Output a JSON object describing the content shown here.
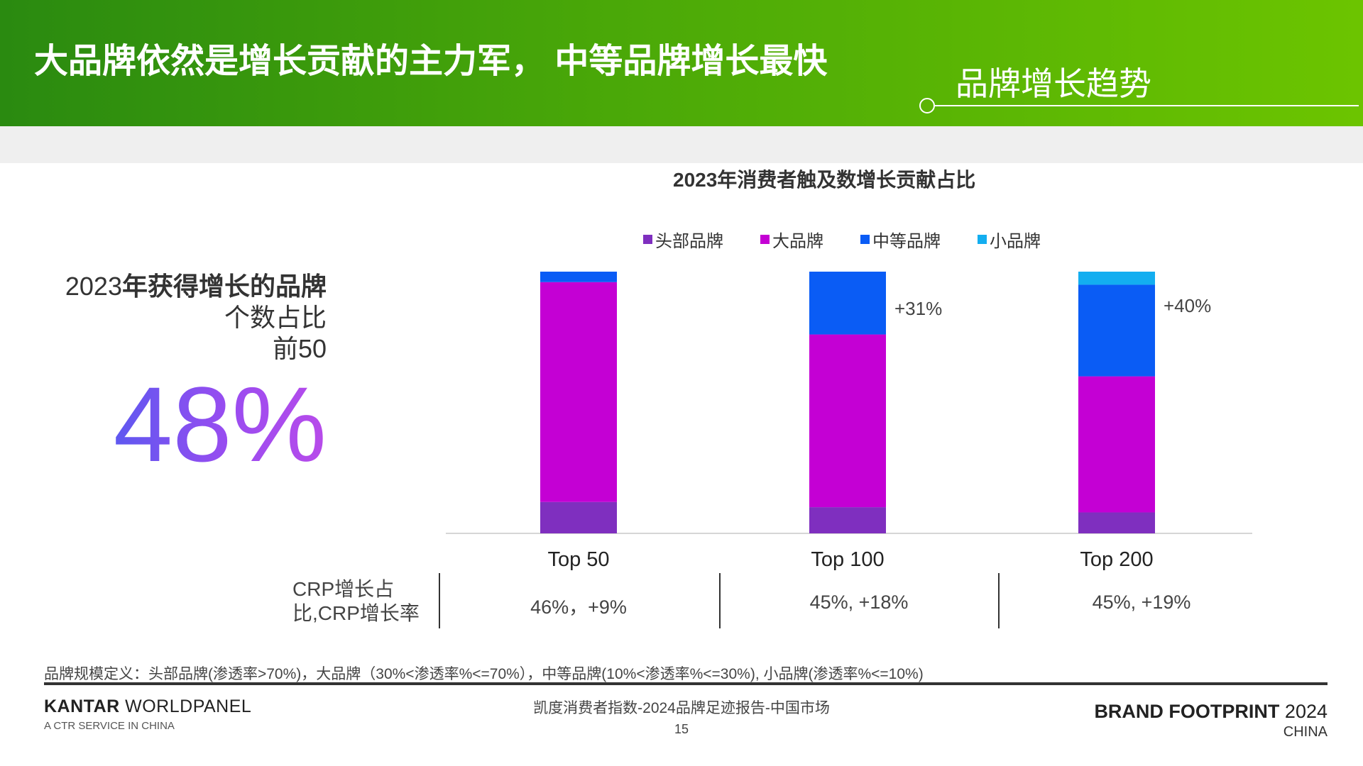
{
  "header": {
    "title": "大品牌依然是增长贡献的主力军， 中等品牌增长最快",
    "section": "品牌增长趋势"
  },
  "left_panel": {
    "heading_bold": "年获得增长的品牌",
    "heading_year": "2023",
    "line2": "个数占比",
    "line3": "前50",
    "big_number": "48%"
  },
  "chart_data": {
    "type": "bar",
    "stacked": true,
    "title": "2023年消费者触及数增长贡献占比",
    "categories": [
      "Top 50",
      "Top 100",
      "Top 200"
    ],
    "series": [
      {
        "name": "头部品牌",
        "color": "#7f2fbf",
        "values": [
          12,
          10,
          8
        ]
      },
      {
        "name": "大品牌",
        "color": "#c400d4",
        "values": [
          84,
          66,
          52
        ]
      },
      {
        "name": "中等品牌",
        "color": "#0a5cf5",
        "values": [
          4,
          24,
          35
        ]
      },
      {
        "name": "小品牌",
        "color": "#13aef0",
        "values": [
          0,
          0,
          5
        ]
      }
    ],
    "annotations": [
      "",
      "+31%",
      "+40%"
    ],
    "ylim": [
      0,
      100
    ],
    "grid": false,
    "legend_position": "top"
  },
  "crp": {
    "label": "CRP增长占比,CRP增长率",
    "values": [
      "46%，+9%",
      "45%, +18%",
      "45%, +19%"
    ]
  },
  "footnote": "品牌规模定义：头部品牌(渗透率>70%)，大品牌（30%<渗透率%<=70%），中等品牌(10%<渗透率%<=30%), 小品牌(渗透率%<=10%)",
  "footer": {
    "brand_left_bold": "KANTAR",
    "brand_left_rest": " WORLDPANEL",
    "brand_left_sub": "A CTR SERVICE IN CHINA",
    "report": "凯度消费者指数-2024品牌足迹报告-中国市场",
    "page": "15",
    "brand_right_bold": "BRAND FOOTPRINT",
    "brand_right_year": " 2024",
    "brand_right_sub": "CHINA"
  }
}
